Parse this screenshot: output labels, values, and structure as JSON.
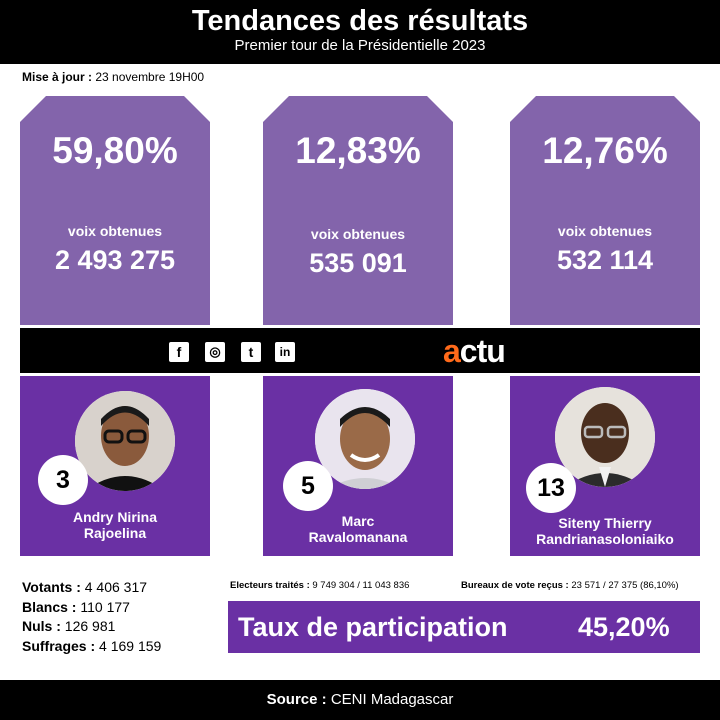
{
  "header": {
    "title": "Tendances des résultats",
    "subtitle": "Premier tour de la Présidentielle 2023"
  },
  "update": {
    "label": "Mise à jour :",
    "value": "23 novembre 19H00"
  },
  "candidates": [
    {
      "percent": "59,80%",
      "votes_label": "voix obtenues",
      "votes": "2 493 275",
      "number": "3",
      "name_line1": "Andry Nirina",
      "name_line2": "Rajoelina"
    },
    {
      "percent": "12,83%",
      "votes_label": "voix obtenues",
      "votes": "535 091",
      "number": "5",
      "name_line1": "Marc",
      "name_line2": "Ravalomanana"
    },
    {
      "percent": "12,76%",
      "votes_label": "voix obtenues",
      "votes": "532 114",
      "number": "13",
      "name_line1": "Siteny Thierry",
      "name_line2": "Randrianasoloniaiko"
    }
  ],
  "brand": {
    "accent": "a",
    "rest": "ctu"
  },
  "social": [
    {
      "icon": "facebook-icon",
      "glyph": "f"
    },
    {
      "icon": "instagram-icon",
      "glyph": "◎"
    },
    {
      "icon": "twitter-icon",
      "glyph": "t"
    },
    {
      "icon": "linkedin-icon",
      "glyph": "in"
    }
  ],
  "stats": {
    "votants_label": "Votants :",
    "votants": "4 406 317",
    "blancs_label": "Blancs :",
    "blancs": "110 177",
    "nuls_label": "Nuls :",
    "nuls": "126 981",
    "suffrages_label": "Suffrages :",
    "suffrages": "4 169 159"
  },
  "electeurs": {
    "label": "Electeurs traités :",
    "value": "9 749 304 / 11 043 836"
  },
  "bureaux": {
    "label": "Bureaux de vote reçus :",
    "value": "23 571 / 27 375 (86,10%)"
  },
  "participation": {
    "label": "Taux de participation",
    "value": "45,20%"
  },
  "footer": {
    "label": "Source :",
    "value": "CENI Madagascar"
  },
  "colors": {
    "card_top": "#8364ab",
    "card_bottom": "#6a30a4",
    "brand_accent": "#ff6a1a"
  }
}
